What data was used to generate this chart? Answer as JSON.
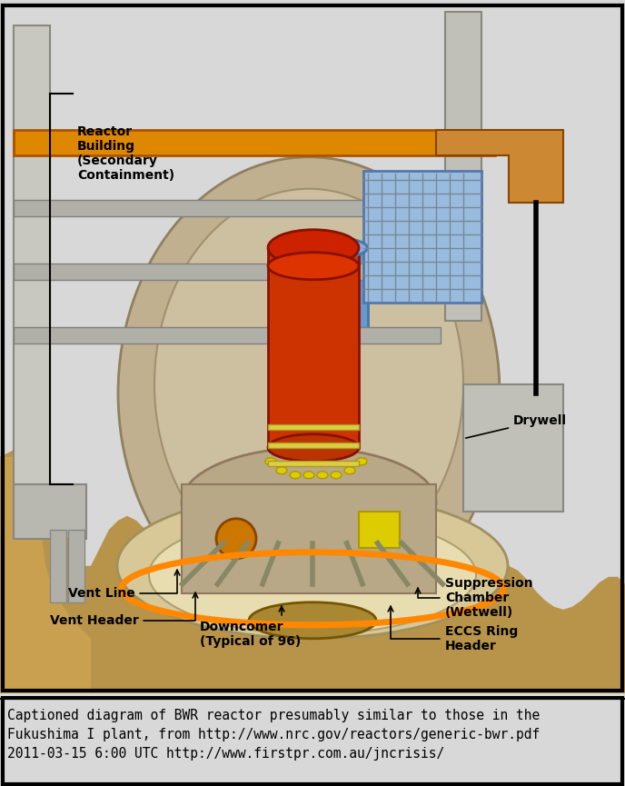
{
  "caption_lines": [
    "Captioned diagram of BWR reactor presumably similar to those in the",
    "Fukushima I plant, from http://www.nrc.gov/reactors/generic-bwr.pdf",
    "2011-03-15 6:00 UTC http://www.firstpr.com.au/jncrisis/"
  ],
  "bg_color": "#d8d8d8",
  "caption_bg": "#ffffff",
  "caption_font_size": 10.5,
  "caption_font_family": "monospace",
  "fig_width": 6.88,
  "fig_height": 8.65,
  "dpi": 100
}
